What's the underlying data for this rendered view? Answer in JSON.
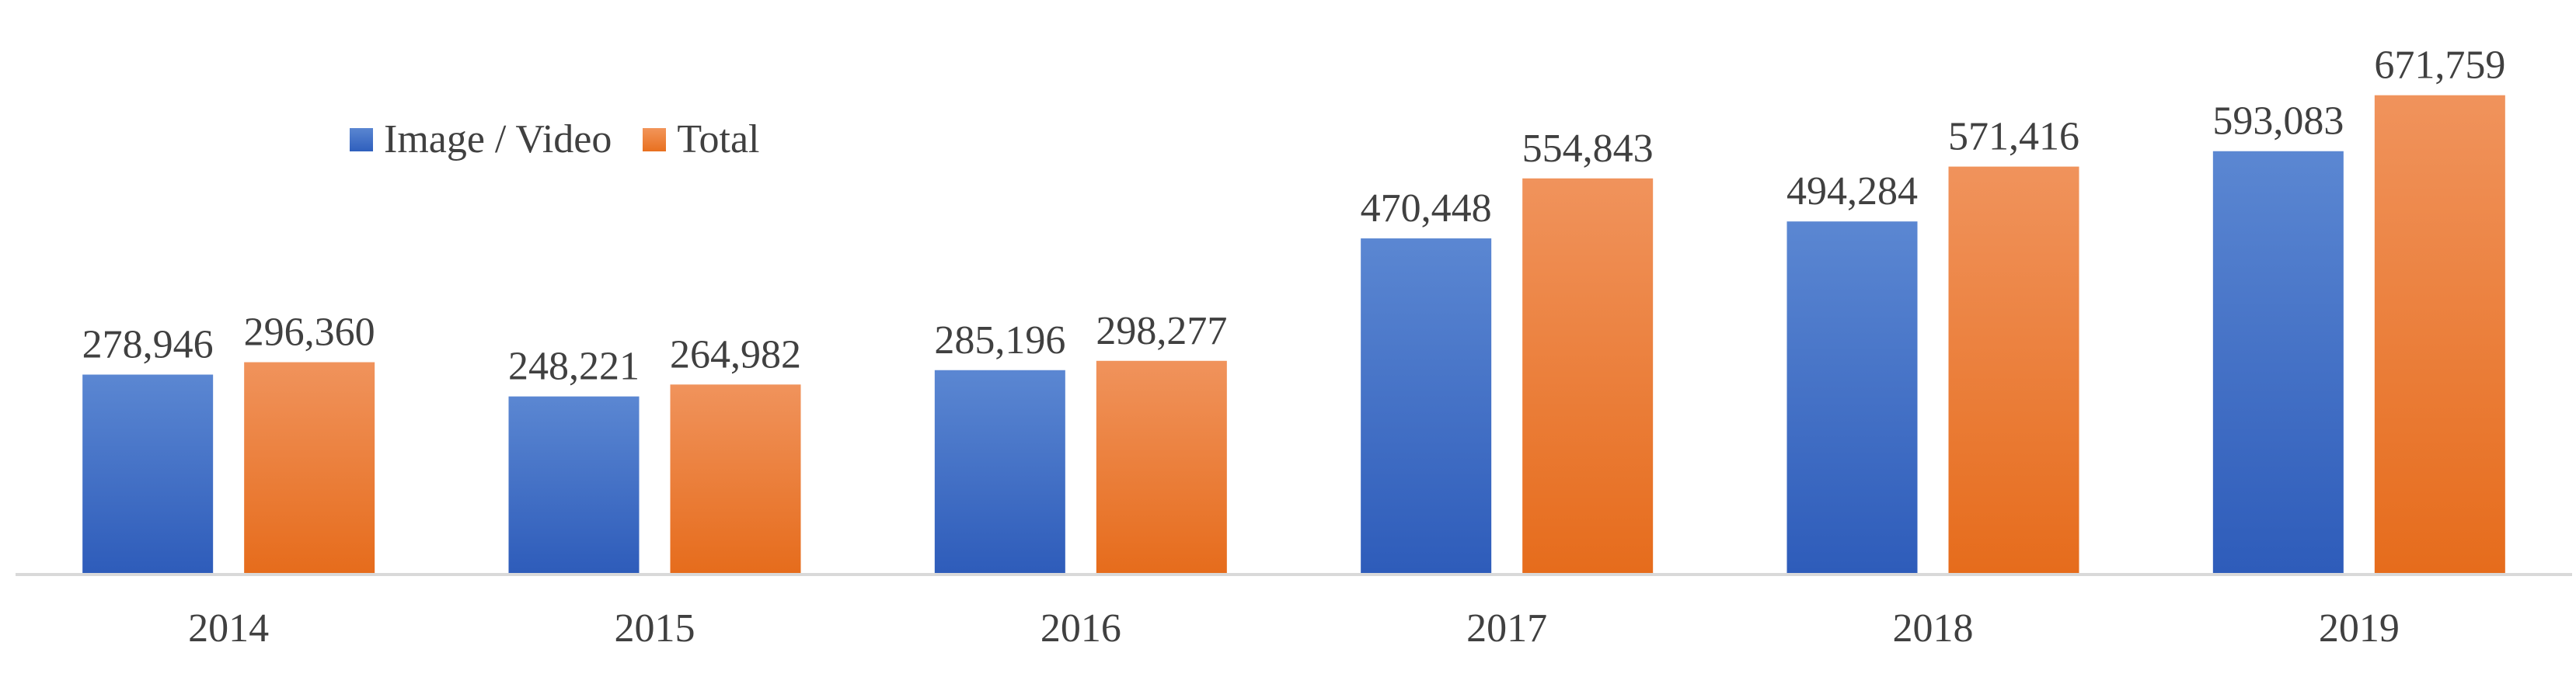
{
  "chart_data": {
    "type": "bar",
    "title": "",
    "xlabel": "",
    "ylabel": "",
    "categories": [
      "2014",
      "2015",
      "2016",
      "2017",
      "2018",
      "2019"
    ],
    "value_labels": {
      "Image / Video": [
        "278,946",
        "248,221",
        "285,196",
        "470,448",
        "494,284",
        "593,083"
      ],
      "Total": [
        "296,360",
        "264,982",
        "298,277",
        "554,843",
        "571,416",
        "671,759"
      ]
    },
    "series": [
      {
        "name": "Image / Video",
        "values": [
          278946,
          248221,
          285196,
          470448,
          494284,
          593083
        ],
        "color": "#4472C4"
      },
      {
        "name": "Total",
        "values": [
          296360,
          264982,
          298277,
          554843,
          571416,
          671759
        ],
        "color": "#ED7D31"
      }
    ],
    "ylim": [
      0,
      700000
    ],
    "grid": false,
    "legend_position": "top-left"
  }
}
